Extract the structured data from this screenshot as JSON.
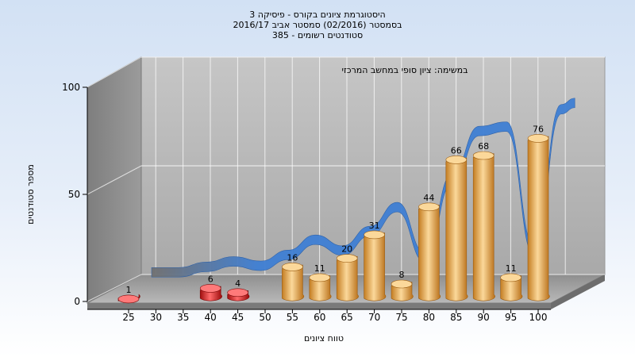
{
  "chart_data": {
    "type": "bar",
    "title_lines": [
      "היסטוגרמת ציונים בקורס - פיסיקה 3",
      "בסמסטר  (02/2016)  סמסטר אביב 2016/17",
      "385 - סטודנטים רשומים"
    ],
    "subtitle": "במשימה: ציון סופי במחשב המרכזי",
    "xlabel": "טווח ציונים",
    "ylabel": "מספר סטודנטים",
    "ylim": [
      0,
      100
    ],
    "y_ticks": [
      0,
      50,
      100
    ],
    "x_tick_labels": [
      "25",
      "30",
      "35",
      "40",
      "45",
      "50",
      "55",
      "60",
      "65",
      "70",
      "75",
      "80",
      "85",
      "90",
      "95",
      "100"
    ],
    "categories": [
      25,
      30,
      35,
      40,
      45,
      50,
      55,
      60,
      65,
      70,
      75,
      80,
      85,
      90,
      95,
      100
    ],
    "values": [
      1,
      0,
      0,
      6,
      4,
      0,
      16,
      11,
      20,
      31,
      8,
      44,
      66,
      68,
      11,
      76
    ],
    "failing_threshold": 55,
    "trend_line": [
      1,
      1,
      3.5,
      6,
      4,
      9,
      16,
      11,
      20,
      31,
      8,
      44,
      66,
      68,
      11,
      76
    ],
    "grid": true,
    "colors": {
      "passing_bar": "#e8a33f",
      "passing_bar_light": "#fbd89a",
      "failing_bar": "#dd1d1d",
      "failing_bar_light": "#ff7a7a",
      "trend_ribbon": "#3f7fd4",
      "trend_ribbon_faded": "#707070",
      "back_wall": "#b7b7b7",
      "side_wall": "#8d8d8d",
      "floor": "#9c9c9c"
    }
  }
}
